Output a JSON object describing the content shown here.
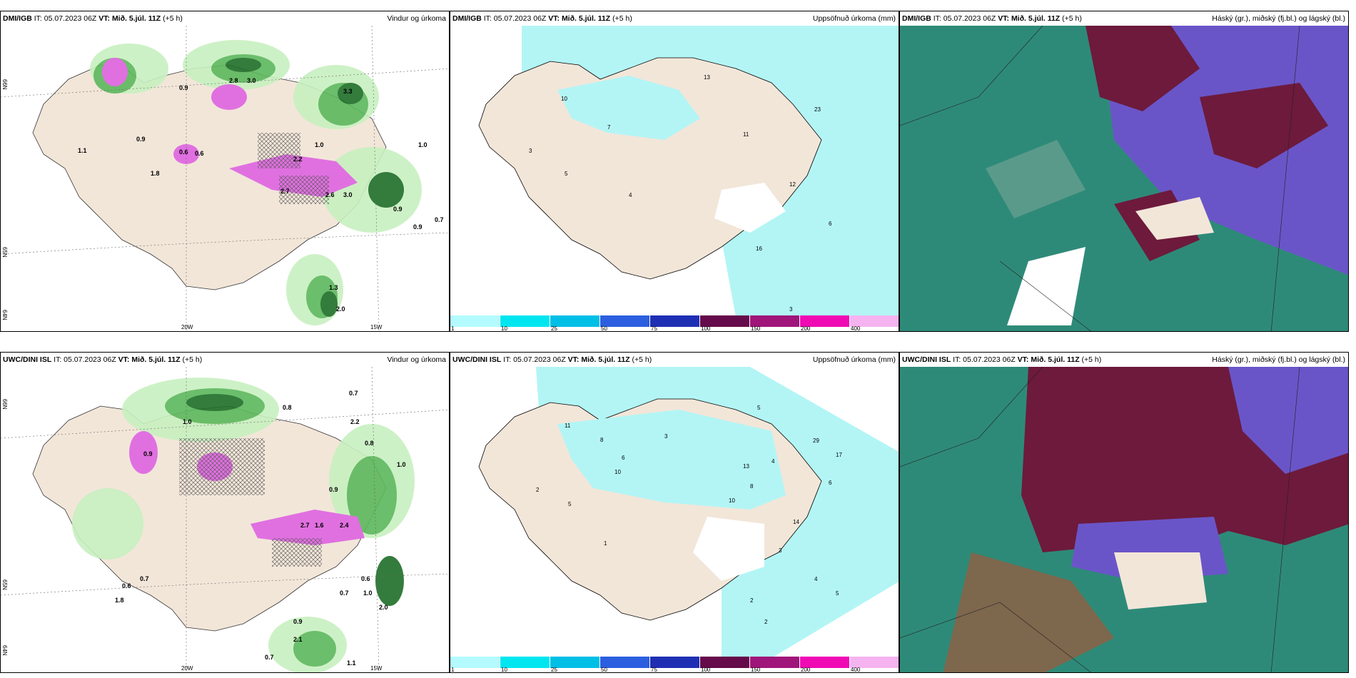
{
  "panels": [
    {
      "model": "DMI/IGB",
      "it": "IT: 05.07.2023 06Z",
      "vt_label": "VT:",
      "vt_value": "Mið. 5.júl. 11Z",
      "lead": "(+5 h)",
      "title": "Vindur og úrkoma",
      "lat_labels": [
        "66N",
        "65N",
        "64N"
      ],
      "lon_labels": [
        "20W",
        "15W"
      ],
      "values": [
        "0.9",
        "2.8",
        "3.0",
        "3.3",
        "1.1",
        "0.9",
        "0.6",
        "0.6",
        "1.8",
        "1.0",
        "2.2",
        "2.7",
        "2.6",
        "3.0",
        "0.9",
        "0.9",
        "0.7",
        "1.3",
        "2.0",
        "1.0"
      ]
    },
    {
      "model": "DMI/IGB",
      "it": "IT: 05.07.2023 06Z",
      "vt_label": "VT:",
      "vt_value": "Mið. 5.júl. 11Z",
      "lead": "(+5 h)",
      "title": "Uppsöfnuð úrkoma (mm)",
      "values": [
        "13",
        "10",
        "7",
        "11",
        "3",
        "5",
        "23",
        "12",
        "4",
        "6",
        "16",
        "3"
      ]
    },
    {
      "model": "DMI/IGB",
      "it": "IT: 05.07.2023 06Z",
      "vt_label": "VT:",
      "vt_value": "Mið. 5.júl. 11Z",
      "lead": "(+5 h)",
      "title": "Háský (gr.), miðský (fj.bl.) og lágský (bl.)"
    },
    {
      "model": "UWC/DINI ISL",
      "it": "IT: 05.07.2023 06Z",
      "vt_label": "VT:",
      "vt_value": "Mið. 5.júl. 11Z",
      "lead": "(+5 h)",
      "title": "Vindur og úrkoma",
      "lat_labels": [
        "66N",
        "65N",
        "64N"
      ],
      "lon_labels": [
        "20W",
        "15W"
      ],
      "values": [
        "0.7",
        "0.8",
        "1.0",
        "0.9",
        "0.6",
        "1.8",
        "0.7",
        "0.6",
        "0.7",
        "0.8",
        "2.2",
        "2.7",
        "1.6",
        "2.4",
        "0.9",
        "1.0",
        "0.7",
        "1.0",
        "2.0",
        "0.9",
        "2.1",
        "1.1"
      ]
    },
    {
      "model": "UWC/DINI ISL",
      "it": "IT: 05.07.2023 06Z",
      "vt_label": "VT:",
      "vt_value": "Mið. 5.júl. 11Z",
      "lead": "(+5 h)",
      "title": "Uppsöfnuð úrkoma (mm)",
      "values": [
        "11",
        "2",
        "5",
        "8",
        "6",
        "10",
        "3",
        "29",
        "17",
        "13",
        "8",
        "4",
        "6",
        "14",
        "10",
        "5",
        "3",
        "2",
        "4",
        "1",
        "5",
        "2"
      ]
    },
    {
      "model": "UWC/DINI ISL",
      "it": "IT: 05.07.2023 06Z",
      "vt_label": "VT:",
      "vt_value": "Mið. 5.júl. 11Z",
      "lead": "(+5 h)",
      "title": "Háský (gr.), miðský (fj.bl.) og lágský (bl.)"
    }
  ],
  "colorbar": {
    "ticks": [
      "1",
      "10",
      "25",
      "50",
      "75",
      "100",
      "150",
      "200",
      "400"
    ],
    "colors": [
      "#b3fbff",
      "#00e6f0",
      "#00bfe6",
      "#2c5fe0",
      "#1f2fb4",
      "#650a4a",
      "#a0157a",
      "#f00ab4",
      "#f5b4f0"
    ]
  },
  "colors": {
    "land": "#f2e6d9",
    "precip_light": "#c8f0c0",
    "precip_mid": "#5cb85c",
    "precip_dark": "#1e6e28",
    "snow": "#e070e0",
    "accum": "#b3f5f5",
    "cloud_high": "#6d1a3c",
    "cloud_mid": "#6a55c8",
    "cloud_low": "#2e8a78"
  }
}
